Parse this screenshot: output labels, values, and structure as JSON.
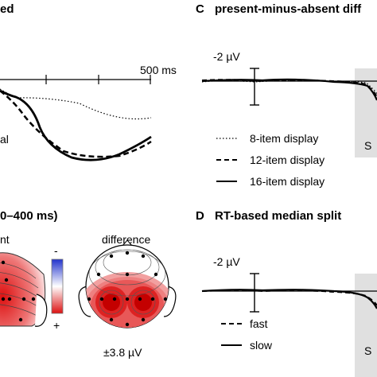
{
  "panel_top_left": {
    "title_fragment": "ed",
    "time_label": "500 ms",
    "side_label": "al"
  },
  "panel_c": {
    "letter": "C",
    "title": "present-minus-absent diff",
    "voltage_label": "-2 µV",
    "shade_letter": "S",
    "legend": [
      {
        "label": "8-item display",
        "style": "dotted"
      },
      {
        "label": "12-item display",
        "style": "dashed"
      },
      {
        "label": "16-item display",
        "style": "solid"
      }
    ]
  },
  "panel_bottom_left": {
    "title_fragment": "0–400 ms)",
    "left_label": "nt",
    "diff_label": "difference",
    "scale_minus": "-",
    "scale_plus": "+",
    "amplitude": "±3.8 µV",
    "colors": {
      "negative": "#2233cc",
      "positive": "#dd1111"
    }
  },
  "panel_d": {
    "letter": "D",
    "title": "RT-based median split",
    "voltage_label": "-2 µV",
    "shade_letter": "S",
    "legend": [
      {
        "label": "fast",
        "style": "dashed"
      },
      {
        "label": "slow",
        "style": "solid"
      }
    ]
  }
}
